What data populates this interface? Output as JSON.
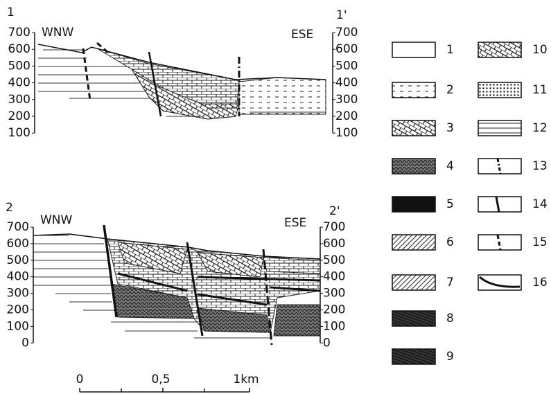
{
  "sections": [
    {
      "label": "1",
      "label_end": "1'",
      "left_dir": "WNW",
      "right_dir": "ESE",
      "left_axis": [
        "700",
        "600",
        "500",
        "400",
        "300",
        "200",
        "100"
      ],
      "right_axis": [
        "700",
        "600",
        "500",
        "400",
        "300",
        "200",
        "100"
      ]
    },
    {
      "label": "2",
      "label_end": "2'",
      "left_dir": "WNW",
      "right_dir": "ESE",
      "left_axis": [
        "700",
        "600",
        "500",
        "400",
        "300",
        "200",
        "100",
        "0"
      ],
      "right_axis": [
        "700",
        "600",
        "500",
        "400",
        "300",
        "200",
        "100",
        "0"
      ]
    }
  ],
  "legend": [
    "1",
    "2",
    "3",
    "4",
    "5",
    "6",
    "7",
    "8",
    "9",
    "10",
    "11",
    "12",
    "13",
    "14",
    "15",
    "16"
  ],
  "scale": [
    "0",
    "0,5",
    "1km"
  ]
}
